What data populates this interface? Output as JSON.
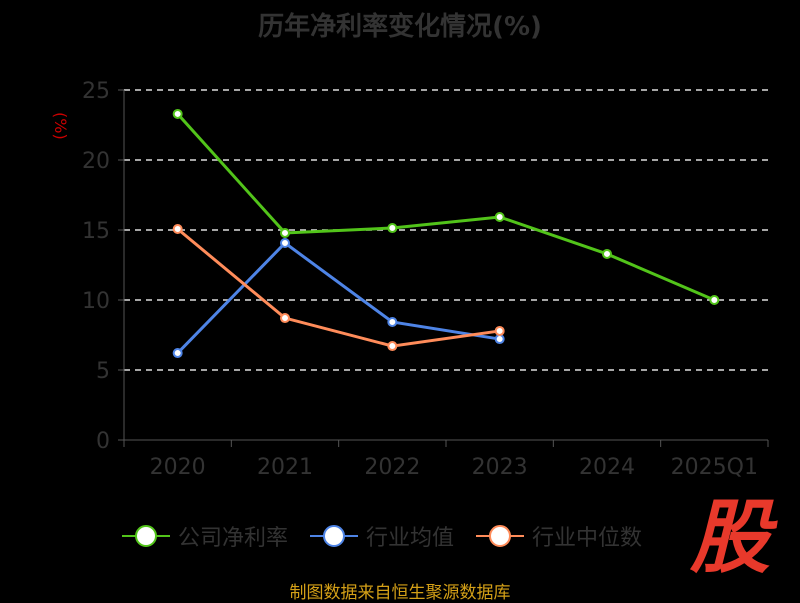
{
  "chart_data": {
    "type": "line",
    "title": "历年净利率变化情况(%)",
    "ylabel": "(%)",
    "xlabel": "",
    "categories": [
      "2020",
      "2021",
      "2022",
      "2023",
      "2024",
      "2025Q1"
    ],
    "ylim": [
      0,
      25
    ],
    "yticks": [
      "0",
      "5",
      "10",
      "15",
      "20",
      "25"
    ],
    "grid": true,
    "legend_position": "bottom",
    "series": [
      {
        "name": "公司净利率",
        "color": "#52c41a",
        "values": [
          23.29,
          14.79,
          15.14,
          15.93,
          13.29,
          10.0
        ]
      },
      {
        "name": "行业均值",
        "color": "#4e84e6",
        "values": [
          6.21,
          14.07,
          8.43,
          7.21,
          null,
          null
        ]
      },
      {
        "name": "行业中位数",
        "color": "#ff8c5a",
        "values": [
          15.07,
          8.71,
          6.71,
          7.79,
          null,
          null
        ]
      }
    ]
  },
  "logo_text": "股",
  "source": "制图数据来自恒生聚源数据库"
}
